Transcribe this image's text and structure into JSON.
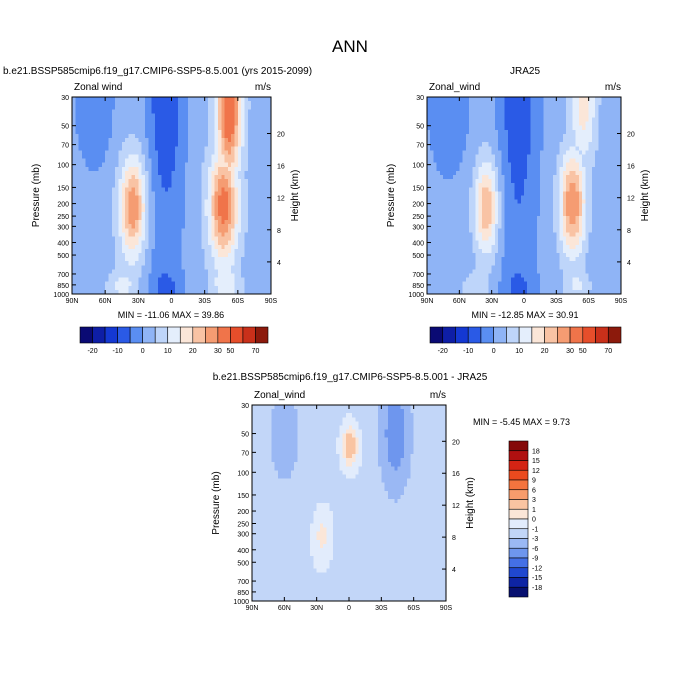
{
  "figure": {
    "title": "ANN",
    "pressure_ticks": [
      "30",
      "50",
      "70",
      "100",
      "150",
      "200",
      "250",
      "300",
      "400",
      "500",
      "700",
      "850",
      "1000"
    ],
    "lat_ticks": [
      "90N",
      "60N",
      "30N",
      "0",
      "30S",
      "60S",
      "90S"
    ],
    "height_ticks": [
      "20",
      "16",
      "12",
      "8",
      "4"
    ],
    "y_label": "Pressure (mb)",
    "y2_label": "Height (km)"
  },
  "chart_data": [
    {
      "type": "heatmap",
      "title": "b.e21.BSSP585cmip6.f19_g17.CMIP6-SSP5-8.5.001 (yrs 2015-2099)",
      "left_label": "Zonal wind",
      "units": "m/s",
      "stats": "MIN = -11.06   MAX =  39.86",
      "min": -11.06,
      "max": 39.86,
      "lat_range": [
        90,
        -90
      ],
      "pressure_range": [
        30,
        1000
      ],
      "colorbar_levels": [
        "-20",
        "-10",
        "0",
        "10",
        "20",
        "30",
        "50",
        "70"
      ]
    },
    {
      "type": "heatmap",
      "title": "JRA25",
      "left_label": "Zonal_wind",
      "units": "m/s",
      "stats": "MIN = -12.85   MAX =  30.91",
      "min": -12.85,
      "max": 30.91,
      "lat_range": [
        90,
        -90
      ],
      "pressure_range": [
        30,
        1000
      ],
      "colorbar_levels": [
        "-20",
        "-10",
        "0",
        "10",
        "20",
        "30",
        "50",
        "70"
      ]
    },
    {
      "type": "heatmap",
      "title": "b.e21.BSSP585cmip6.f19_g17.CMIP6-SSP5-8.5.001 - JRA25",
      "left_label": "Zonal_wind",
      "units": "m/s",
      "stats": "MIN =  -5.45   MAX =   9.73",
      "min": -5.45,
      "max": 9.73,
      "lat_range": [
        90,
        -90
      ],
      "pressure_range": [
        30,
        1000
      ],
      "colorbar_levels": [
        "18",
        "15",
        "12",
        "9",
        "6",
        "3",
        "1",
        "0",
        "-1",
        "-3",
        "-6",
        "-9",
        "-12",
        "-15",
        "-18"
      ]
    }
  ],
  "colors": {
    "main": [
      "#0a0a74",
      "#0e1ea6",
      "#1438d2",
      "#2a5ae6",
      "#5a8ef2",
      "#8fb4f6",
      "#bed5fa",
      "#e4eefc",
      "#fbe6d8",
      "#f9c3a4",
      "#f59c72",
      "#f0744a",
      "#e64e2b",
      "#c9301a",
      "#8c1a0c"
    ],
    "diff": [
      "#850909",
      "#b01010",
      "#d42414",
      "#ea4a1e",
      "#f4743e",
      "#f79c6c",
      "#f9c4a2",
      "#fbe6d8",
      "#e2ecfc",
      "#c2d6f8",
      "#9ab8f4",
      "#6e96ee",
      "#4470e6",
      "#2048d0",
      "#0e24a4",
      "#071070"
    ]
  }
}
